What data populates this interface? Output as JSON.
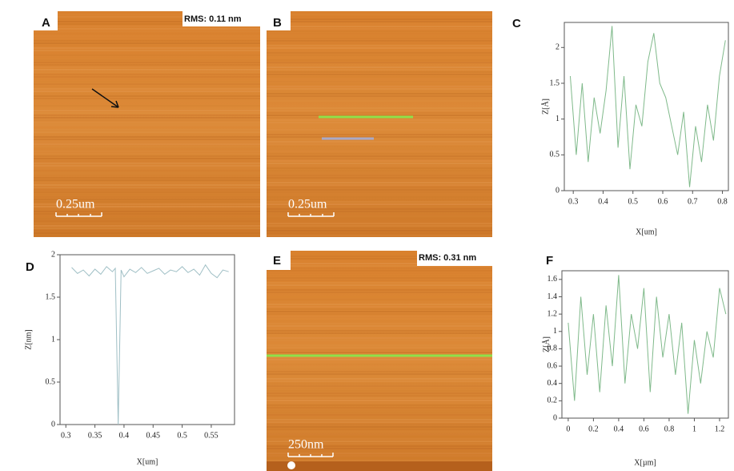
{
  "panels": [
    {
      "label": "A",
      "annotation": "RMS: 0.11 nm",
      "scale": "0.25um"
    },
    {
      "label": "B",
      "scale": "0.25um"
    },
    {
      "label": "E",
      "annotation": "RMS: 0.31 nm",
      "scale": "250nm"
    }
  ],
  "chart_data": [
    {
      "type": "line",
      "label": "C",
      "xlabel": "X[um]",
      "ylabel": "Z[Å]",
      "color": "#7fb98a",
      "xlim": [
        0.27,
        0.82
      ],
      "ylim": [
        0,
        2.35
      ],
      "xticks": [
        0.3,
        0.4,
        0.5,
        0.6,
        0.7,
        0.8
      ],
      "yticks": [
        0,
        0.5,
        1,
        1.5,
        2
      ],
      "x": [
        0.29,
        0.31,
        0.33,
        0.35,
        0.37,
        0.39,
        0.41,
        0.43,
        0.45,
        0.47,
        0.49,
        0.51,
        0.53,
        0.55,
        0.57,
        0.59,
        0.61,
        0.63,
        0.65,
        0.67,
        0.69,
        0.71,
        0.73,
        0.75,
        0.77,
        0.79,
        0.81
      ],
      "series": [
        {
          "values": [
            1.6,
            0.5,
            1.5,
            0.4,
            1.3,
            0.8,
            1.4,
            2.3,
            0.6,
            1.6,
            0.3,
            1.2,
            0.9,
            1.8,
            2.2,
            1.5,
            1.3,
            0.9,
            0.5,
            1.1,
            0.05,
            0.9,
            0.4,
            1.2,
            0.7,
            1.6,
            2.1
          ]
        }
      ]
    },
    {
      "type": "line",
      "label": "D",
      "xlabel": "X[um]",
      "ylabel": "Z[nm]",
      "color": "#9fbfc5",
      "xlim": [
        0.29,
        0.59
      ],
      "ylim": [
        0,
        2
      ],
      "xticks": [
        0.3,
        0.35,
        0.4,
        0.45,
        0.5,
        0.55
      ],
      "yticks": [
        0,
        0.5,
        1,
        1.5,
        2
      ],
      "x": [
        0.31,
        0.32,
        0.33,
        0.34,
        0.35,
        0.36,
        0.37,
        0.38,
        0.385,
        0.39,
        0.395,
        0.4,
        0.41,
        0.42,
        0.43,
        0.44,
        0.45,
        0.46,
        0.47,
        0.48,
        0.49,
        0.5,
        0.51,
        0.52,
        0.53,
        0.54,
        0.55,
        0.56,
        0.57,
        0.58
      ],
      "series": [
        {
          "values": [
            1.85,
            1.78,
            1.82,
            1.75,
            1.83,
            1.77,
            1.86,
            1.8,
            1.84,
            0,
            1.82,
            1.74,
            1.83,
            1.79,
            1.85,
            1.78,
            1.81,
            1.84,
            1.77,
            1.82,
            1.8,
            1.86,
            1.79,
            1.83,
            1.76,
            1.88,
            1.78,
            1.73,
            1.82,
            1.8
          ]
        }
      ]
    },
    {
      "type": "line",
      "label": "F",
      "xlabel": "X[µm]",
      "ylabel": "Z[Å]",
      "color": "#7fb98a",
      "xlim": [
        -0.05,
        1.27
      ],
      "ylim": [
        0,
        1.7
      ],
      "xticks": [
        0,
        0.2,
        0.4,
        0.6,
        0.8,
        1,
        1.2
      ],
      "yticks": [
        0,
        0.2,
        0.4,
        0.6,
        0.8,
        1,
        1.2,
        1.4,
        1.6
      ],
      "x": [
        0,
        0.05,
        0.1,
        0.15,
        0.2,
        0.25,
        0.3,
        0.35,
        0.4,
        0.45,
        0.5,
        0.55,
        0.6,
        0.65,
        0.7,
        0.75,
        0.8,
        0.85,
        0.9,
        0.95,
        1,
        1.05,
        1.1,
        1.15,
        1.2,
        1.25
      ],
      "series": [
        {
          "values": [
            1.1,
            0.2,
            1.4,
            0.5,
            1.2,
            0.3,
            1.3,
            0.6,
            1.65,
            0.4,
            1.2,
            0.8,
            1.5,
            0.3,
            1.4,
            0.7,
            1.2,
            0.5,
            1.1,
            0.05,
            0.9,
            0.4,
            1.0,
            0.7,
            1.5,
            1.2
          ]
        }
      ]
    }
  ]
}
